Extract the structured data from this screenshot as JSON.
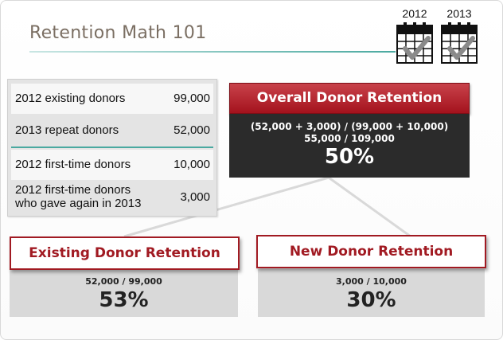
{
  "title": "Retention Math 101",
  "calendars": [
    "2012",
    "2013"
  ],
  "table": [
    {
      "label": "2012 existing donors",
      "value": "99,000"
    },
    {
      "label": "2013 repeat donors",
      "value": "52,000"
    },
    {
      "label": "2012 first-time donors",
      "value": "10,000"
    },
    {
      "label_line1": "2012 first-time donors",
      "label_line2": "who gave again in 2013",
      "value": "3,000"
    }
  ],
  "overall": {
    "title": "Overall Donor Retention",
    "formula1": "(52,000 + 3,000) / (99,000 + 10,000)",
    "formula2": "55,000 / 109,000",
    "result": "50%"
  },
  "existing": {
    "title": "Existing Donor Retention",
    "formula": "52,000 / 99,000",
    "result": "53%"
  },
  "new": {
    "title": "New Donor Retention",
    "formula": "3,000 / 10,000",
    "result": "30%"
  },
  "colors": {
    "title_text": "#7b6f63",
    "accent_teal": "#4aa9a0",
    "red": "#a11a22",
    "dark_box": "#2b2b2b",
    "grey_box": "#d9d9d9"
  },
  "icons": [
    "calendar-check-icon",
    "calendar-check-icon"
  ]
}
